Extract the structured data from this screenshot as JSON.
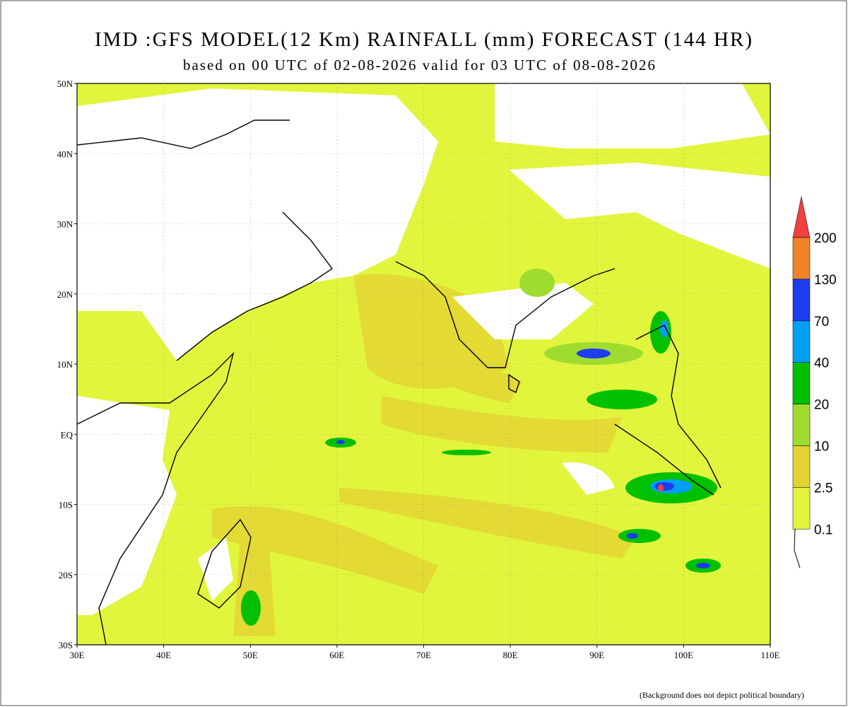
{
  "header": {
    "title": "IMD :GFS MODEL(12 Km) RAINFALL (mm) FORECAST (144 HR)",
    "subtitle": "based on 00 UTC of 02-08-2026 valid for 03 UTC of 08-08-2026"
  },
  "map": {
    "lat_labels": [
      "50N",
      "40N",
      "30N",
      "20N",
      "10N",
      "EQ",
      "10S",
      "20S",
      "30S"
    ],
    "lon_labels": [
      "30E",
      "40E",
      "50E",
      "60E",
      "70E",
      "80E",
      "90E",
      "100E",
      "110E"
    ]
  },
  "legend": {
    "levels": [
      "200",
      "130",
      "70",
      "40",
      "20",
      "10",
      "2.5",
      "0.1"
    ],
    "colors": [
      "#f04040",
      "#f08228",
      "#1e3cf0",
      "#00a0f5",
      "#00c000",
      "#a0dc30",
      "#e4d232",
      "#e1f53c"
    ]
  },
  "footer": {
    "note": "(Background does not depict political boundary)"
  }
}
